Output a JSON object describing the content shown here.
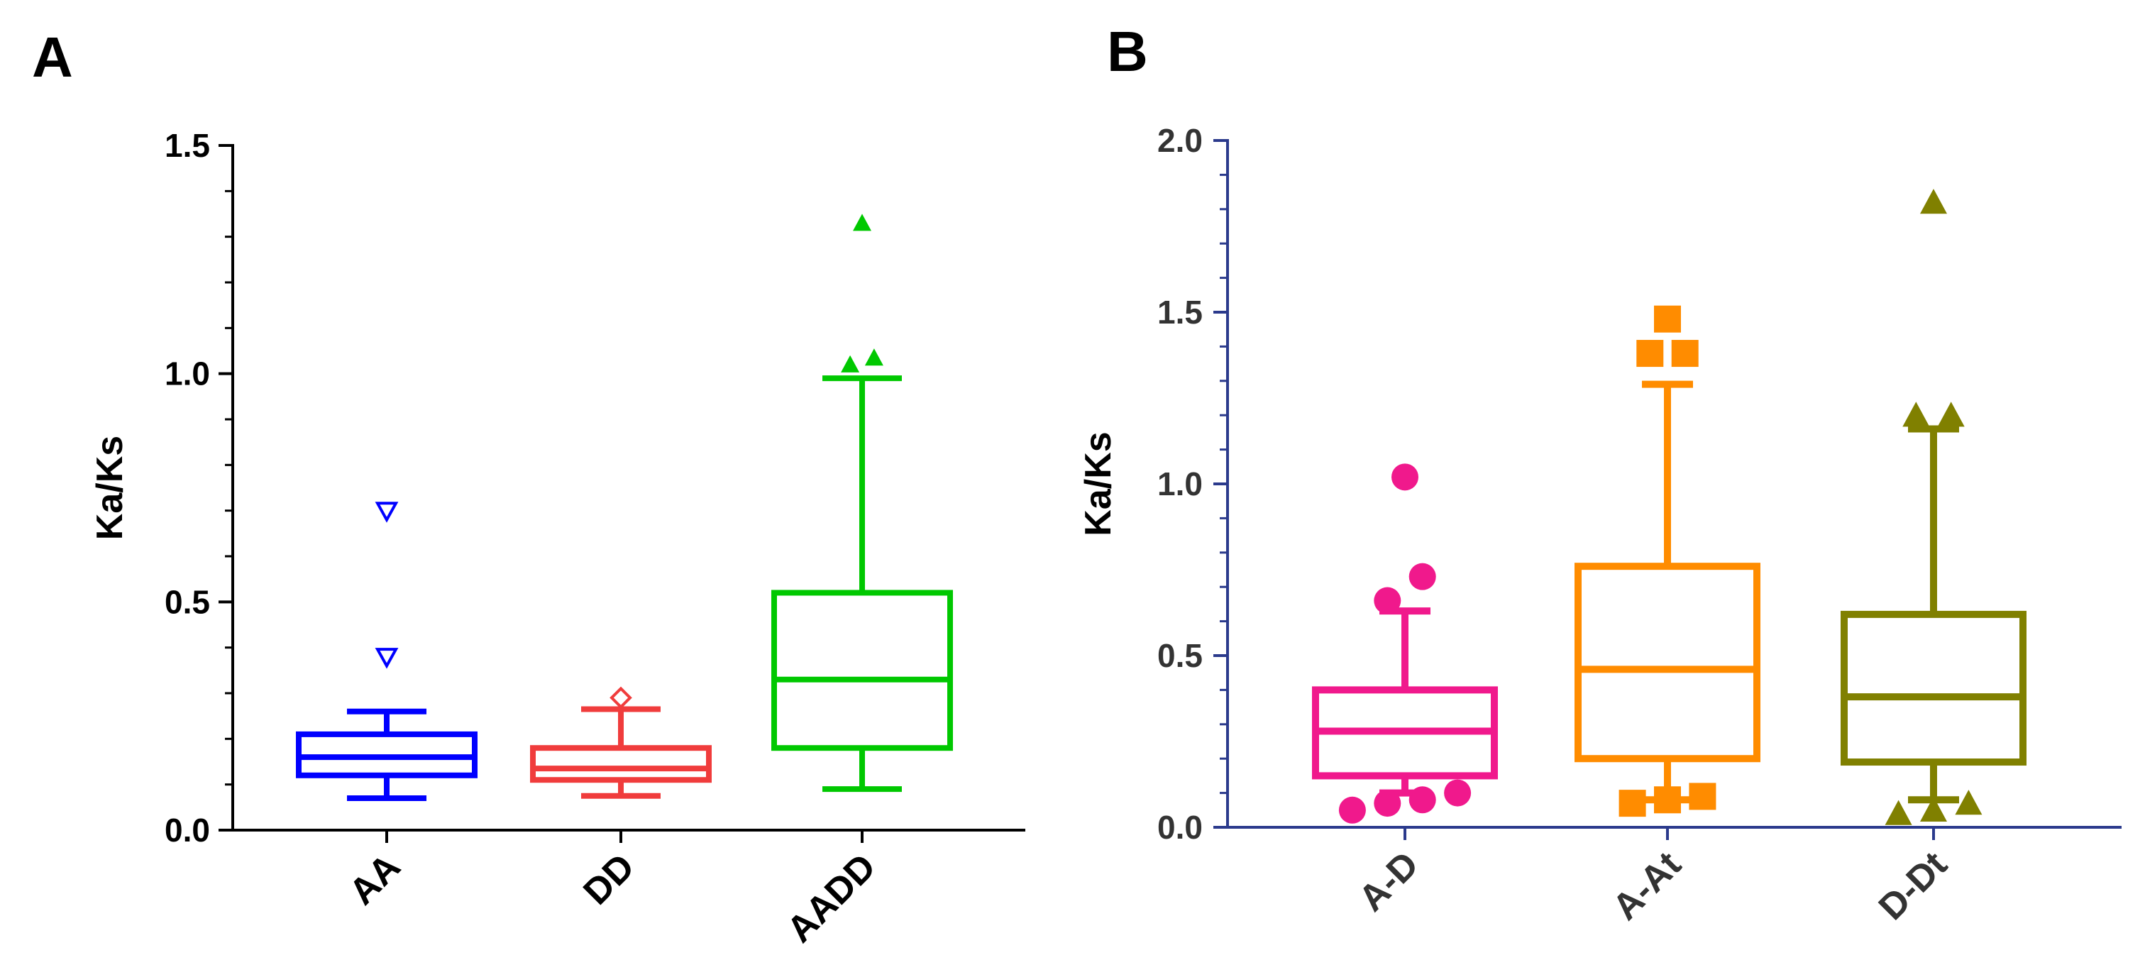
{
  "chart_data": [
    {
      "panel": "A",
      "type": "box",
      "title": "",
      "xlabel": "",
      "ylabel": "Ka/Ks",
      "ylim": [
        0,
        1.5
      ],
      "yticks": [
        0.0,
        0.5,
        1.0,
        1.5
      ],
      "ytick_labels": [
        "0.0",
        "0.5",
        "1.0",
        "1.5"
      ],
      "axis_color": "#000000",
      "text_color": "#000000",
      "box_fill": "none",
      "groups": [
        {
          "label": "AA",
          "color": "#0000FF",
          "marker": "triangle-down-open",
          "whisker_low": 0.07,
          "q1": 0.12,
          "median": 0.16,
          "q3": 0.21,
          "whisker_high": 0.26,
          "outliers": [
            0.38,
            0.7
          ]
        },
        {
          "label": "DD",
          "color": "#F03C3C",
          "marker": "diamond-open",
          "whisker_low": 0.075,
          "q1": 0.11,
          "median": 0.135,
          "q3": 0.18,
          "whisker_high": 0.265,
          "outliers": [
            0.29
          ]
        },
        {
          "label": "AADD",
          "color": "#00C800",
          "marker": "triangle-up",
          "whisker_low": 0.09,
          "q1": 0.18,
          "median": 0.33,
          "q3": 0.52,
          "whisker_high": 0.99,
          "outliers": [
            1.02,
            1.035,
            1.33
          ]
        }
      ]
    },
    {
      "panel": "B",
      "type": "box",
      "title": "",
      "xlabel": "",
      "ylabel": "Ka/Ks",
      "ylim": [
        0,
        2.0
      ],
      "yticks": [
        0.0,
        0.5,
        1.0,
        1.5,
        2.0
      ],
      "ytick_labels": [
        "0.0",
        "0.5",
        "1.0",
        "1.5",
        "2.0"
      ],
      "axis_color": "#2B3A8C",
      "text_color": "#333333",
      "box_fill": "#FFFFFF",
      "groups": [
        {
          "label": "A-D",
          "color": "#F0198C",
          "marker": "circle",
          "whisker_low": 0.1,
          "q1": 0.15,
          "median": 0.28,
          "q3": 0.4,
          "whisker_high": 0.63,
          "outliers": [
            0.05,
            0.07,
            0.08,
            0.1,
            0.66,
            0.73,
            1.02
          ]
        },
        {
          "label": "A-At",
          "color": "#FF8C00",
          "marker": "square",
          "whisker_low": 0.08,
          "q1": 0.2,
          "median": 0.46,
          "q3": 0.76,
          "whisker_high": 1.29,
          "outliers": [
            0.07,
            0.08,
            0.09,
            1.38,
            1.38,
            1.48
          ]
        },
        {
          "label": "D-Dt",
          "color": "#808000",
          "marker": "triangle-up",
          "whisker_low": 0.08,
          "q1": 0.19,
          "median": 0.38,
          "q3": 0.62,
          "whisker_high": 1.16,
          "outliers": [
            0.04,
            0.05,
            0.07,
            1.2,
            1.2,
            1.82
          ]
        }
      ]
    }
  ]
}
